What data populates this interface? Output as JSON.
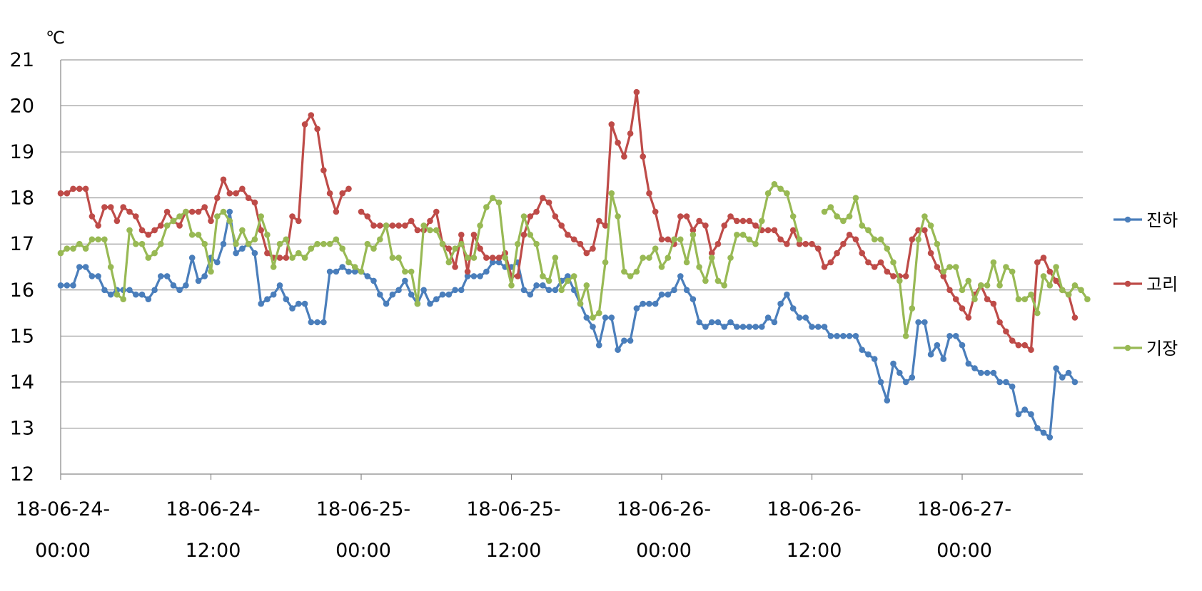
{
  "chart_data": {
    "type": "line",
    "unit_label": "℃",
    "ylim": [
      12,
      21
    ],
    "yticks": [
      "12",
      "13",
      "14",
      "15",
      "16",
      "17",
      "18",
      "19",
      "20",
      "21"
    ],
    "grid": true,
    "legend_position": "right",
    "x_tick_labels": [
      {
        "line1": "18-06-24-",
        "line2": "00:00"
      },
      {
        "line1": "18-06-24-",
        "line2": "12:00"
      },
      {
        "line1": "18-06-25-",
        "line2": "00:00"
      },
      {
        "line1": "18-06-25-",
        "line2": "12:00"
      },
      {
        "line1": "18-06-26-",
        "line2": "00:00"
      },
      {
        "line1": "18-06-26-",
        "line2": "12:00"
      },
      {
        "line1": "18-06-27-",
        "line2": "00:00"
      }
    ],
    "x_start": "18-06-24 00:00",
    "x_step_hours": 0.5,
    "series": [
      {
        "name": "진하",
        "color": "#4A7EBB",
        "values": [
          16.1,
          16.1,
          16.1,
          16.5,
          16.5,
          16.3,
          16.3,
          16.0,
          15.9,
          16.0,
          16.0,
          16.0,
          15.9,
          15.9,
          15.8,
          16.0,
          16.3,
          16.3,
          16.1,
          16.0,
          16.1,
          16.7,
          16.2,
          16.3,
          16.7,
          16.6,
          17.0,
          17.7,
          16.8,
          16.9,
          17.0,
          16.8,
          15.7,
          15.8,
          15.9,
          16.1,
          15.8,
          15.6,
          15.7,
          15.7,
          15.3,
          15.3,
          15.3,
          16.4,
          16.4,
          16.5,
          16.4,
          16.4,
          16.4,
          16.3,
          16.2,
          15.9,
          15.7,
          15.9,
          16.0,
          16.2,
          15.9,
          15.7,
          16.0,
          15.7,
          15.8,
          15.9,
          15.9,
          16.0,
          16.0,
          16.3,
          16.3,
          16.3,
          16.4,
          16.6,
          16.6,
          16.5,
          16.5,
          16.6,
          16.0,
          15.9,
          16.1,
          16.1,
          16.0,
          16.0,
          16.2,
          16.3,
          16.0,
          15.7,
          15.4,
          15.2,
          14.8,
          15.4,
          15.4,
          14.7,
          14.9,
          14.9,
          15.6,
          15.7,
          15.7,
          15.7,
          15.9,
          15.9,
          16.0,
          16.3,
          16.0,
          15.8,
          15.3,
          15.2,
          15.3,
          15.3,
          15.2,
          15.3,
          15.2,
          15.2,
          15.2,
          15.2,
          15.2,
          15.4,
          15.3,
          15.7,
          15.9,
          15.6,
          15.4,
          15.4,
          15.2,
          15.2,
          15.2,
          15.0,
          15.0,
          15.0,
          15.0,
          15.0,
          14.7,
          14.6,
          14.5,
          14.0,
          13.6,
          14.4,
          14.2,
          14.0,
          14.1,
          15.3,
          15.3,
          14.6,
          14.8,
          14.5,
          15.0,
          15.0,
          14.8,
          14.4,
          14.3,
          14.2,
          14.2,
          14.2,
          14.0,
          14.0,
          13.9,
          13.3,
          13.4,
          13.3,
          13.0,
          12.9,
          12.8,
          14.3,
          14.1,
          14.2,
          14.0
        ]
      },
      {
        "name": "고리",
        "color": "#BE4B48",
        "values": [
          18.1,
          18.1,
          18.2,
          18.2,
          18.2,
          17.6,
          17.4,
          17.8,
          17.8,
          17.5,
          17.8,
          17.7,
          17.6,
          17.3,
          17.2,
          17.3,
          17.4,
          17.7,
          17.5,
          17.4,
          17.7,
          17.7,
          17.7,
          17.8,
          17.5,
          18.0,
          18.4,
          18.1,
          18.1,
          18.2,
          18.0,
          17.9,
          17.3,
          16.8,
          16.7,
          16.7,
          16.7,
          17.6,
          17.5,
          19.6,
          19.8,
          19.5,
          18.6,
          18.1,
          17.7,
          18.1,
          18.2,
          null,
          17.7,
          17.6,
          17.4,
          17.4,
          17.4,
          17.4,
          17.4,
          17.4,
          17.5,
          17.3,
          17.3,
          17.5,
          17.7,
          17.0,
          16.9,
          16.5,
          17.2,
          16.4,
          17.2,
          16.9,
          16.7,
          16.7,
          16.7,
          16.8,
          16.3,
          16.3,
          17.2,
          17.6,
          17.7,
          18.0,
          17.9,
          17.6,
          17.4,
          17.2,
          17.1,
          17.0,
          16.8,
          16.9,
          17.5,
          17.4,
          19.6,
          19.2,
          18.9,
          19.4,
          20.3,
          18.9,
          18.1,
          17.7,
          17.1,
          17.1,
          17.0,
          17.6,
          17.6,
          17.3,
          17.5,
          17.4,
          16.8,
          17.0,
          17.4,
          17.6,
          17.5,
          17.5,
          17.5,
          17.4,
          17.3,
          17.3,
          17.3,
          17.1,
          17.0,
          17.3,
          17.0,
          17.0,
          17.0,
          16.9,
          16.5,
          16.6,
          16.8,
          17.0,
          17.2,
          17.1,
          16.8,
          16.6,
          16.5,
          16.6,
          16.4,
          16.3,
          16.3,
          16.3,
          17.1,
          17.3,
          17.3,
          16.8,
          16.5,
          16.3,
          16.0,
          15.8,
          15.6,
          15.4,
          15.9,
          16.1,
          15.8,
          15.7,
          15.3,
          15.1,
          14.9,
          14.8,
          14.8,
          14.7,
          16.6,
          16.7,
          16.4,
          16.2,
          16.0,
          15.9,
          15.4
        ]
      },
      {
        "name": "기장",
        "color": "#98B954",
        "values": [
          16.8,
          16.9,
          16.9,
          17.0,
          16.9,
          17.1,
          17.1,
          17.1,
          16.5,
          15.9,
          15.8,
          17.3,
          17.0,
          17.0,
          16.7,
          16.8,
          17.0,
          17.4,
          17.5,
          17.6,
          17.7,
          17.2,
          17.2,
          17.0,
          16.4,
          17.6,
          17.7,
          17.5,
          17.0,
          17.3,
          17.0,
          17.1,
          17.6,
          17.2,
          16.5,
          17.0,
          17.1,
          16.7,
          16.8,
          16.7,
          16.9,
          17.0,
          17.0,
          17.0,
          17.1,
          16.9,
          16.6,
          16.5,
          16.4,
          17.0,
          16.9,
          17.1,
          17.4,
          16.7,
          16.7,
          16.4,
          16.4,
          15.7,
          17.4,
          17.3,
          17.3,
          17.0,
          16.6,
          16.9,
          17.0,
          16.7,
          16.7,
          17.4,
          17.8,
          18.0,
          17.9,
          16.7,
          16.1,
          17.0,
          17.6,
          17.2,
          17.0,
          16.3,
          16.2,
          16.7,
          16.0,
          16.2,
          16.3,
          15.7,
          16.1,
          15.4,
          15.5,
          16.6,
          18.1,
          17.6,
          16.4,
          16.3,
          16.4,
          16.7,
          16.7,
          16.9,
          16.5,
          16.7,
          17.1,
          17.1,
          16.6,
          17.2,
          16.5,
          16.2,
          16.7,
          16.2,
          16.1,
          16.7,
          17.2,
          17.2,
          17.1,
          17.0,
          17.5,
          18.1,
          18.3,
          18.2,
          18.1,
          17.6,
          17.1,
          null,
          null,
          null,
          17.7,
          17.8,
          17.6,
          17.5,
          17.6,
          18.0,
          17.4,
          17.3,
          17.1,
          17.1,
          16.9,
          16.6,
          16.2,
          15.0,
          15.6,
          17.1,
          17.6,
          17.4,
          17.0,
          16.4,
          16.5,
          16.5,
          16.0,
          16.2,
          15.8,
          16.1,
          16.1,
          16.6,
          16.1,
          16.5,
          16.4,
          15.8,
          15.8,
          15.9,
          15.5,
          16.3,
          16.1,
          16.5,
          16.0,
          15.9,
          16.1,
          16.0,
          15.8
        ]
      }
    ]
  }
}
